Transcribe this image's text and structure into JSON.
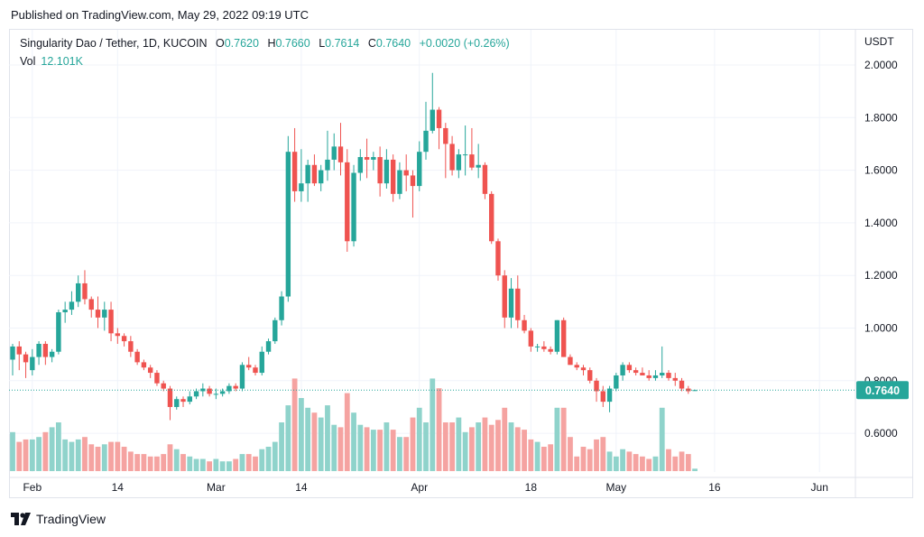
{
  "header": {
    "published": "Published on TradingView.com, May 29, 2022 09:19 UTC"
  },
  "legend": {
    "symbol": "Singularity Dao / Tether, 1D, KUCOIN",
    "open_label": "O",
    "open": "0.7620",
    "high_label": "H",
    "high": "0.7660",
    "low_label": "L",
    "low": "0.7614",
    "close_label": "C",
    "close": "0.7640",
    "change": "+0.0020 (+0.26%)",
    "vol_label": "Vol",
    "vol": "12.101K"
  },
  "footer": {
    "brand": "TradingView"
  },
  "colors": {
    "up": "#26a69a",
    "down": "#ef5350",
    "up_vol": "#8fd3cb",
    "down_vol": "#f5a3a1",
    "grid": "#f0f3fa"
  },
  "chart_data": {
    "type": "candlestick",
    "ylabel": "USDT",
    "ylim": [
      0.44,
      2.1
    ],
    "y_ticks": [
      "2.0000",
      "1.8000",
      "1.6000",
      "1.4000",
      "1.2000",
      "1.0000",
      "0.8000",
      "0.6000"
    ],
    "x_ticks": [
      {
        "label": "Feb",
        "date": "2022-02-01"
      },
      {
        "label": "14",
        "date": "2022-02-14"
      },
      {
        "label": "Mar",
        "date": "2022-03-01"
      },
      {
        "label": "14",
        "date": "2022-03-14"
      },
      {
        "label": "Apr",
        "date": "2022-04-01"
      },
      {
        "label": "18",
        "date": "2022-04-18"
      },
      {
        "label": "May",
        "date": "2022-05-01"
      },
      {
        "label": "16",
        "date": "2022-05-16"
      },
      {
        "label": "Jun",
        "date": "2022-06-01"
      }
    ],
    "last_price": "0.7640",
    "start_date": "2022-01-29",
    "columns": [
      "open",
      "high",
      "low",
      "close",
      "volume"
    ],
    "candles": [
      [
        0.88,
        0.94,
        0.82,
        0.93,
        0.16
      ],
      [
        0.93,
        0.95,
        0.84,
        0.9,
        0.12
      ],
      [
        0.9,
        0.91,
        0.81,
        0.87,
        0.13
      ],
      [
        0.84,
        0.92,
        0.82,
        0.89,
        0.13
      ],
      [
        0.89,
        0.95,
        0.86,
        0.94,
        0.14
      ],
      [
        0.94,
        0.95,
        0.86,
        0.89,
        0.16
      ],
      [
        0.89,
        0.92,
        0.87,
        0.91,
        0.18
      ],
      [
        0.91,
        1.07,
        0.9,
        1.06,
        0.2
      ],
      [
        1.06,
        1.1,
        1.02,
        1.07,
        0.13
      ],
      [
        1.07,
        1.14,
        1.05,
        1.1,
        0.12
      ],
      [
        1.1,
        1.2,
        1.08,
        1.17,
        0.13
      ],
      [
        1.17,
        1.22,
        1.09,
        1.11,
        0.14
      ],
      [
        1.11,
        1.12,
        1.04,
        1.07,
        0.11
      ],
      [
        1.07,
        1.12,
        1.0,
        1.04,
        0.1
      ],
      [
        1.04,
        1.1,
        0.99,
        1.07,
        0.11
      ],
      [
        1.07,
        1.1,
        0.95,
        0.98,
        0.12
      ],
      [
        0.98,
        1.0,
        0.94,
        0.97,
        0.12
      ],
      [
        0.97,
        0.98,
        0.93,
        0.95,
        0.1
      ],
      [
        0.95,
        0.97,
        0.89,
        0.91,
        0.08
      ],
      [
        0.91,
        0.92,
        0.86,
        0.87,
        0.07
      ],
      [
        0.87,
        0.88,
        0.84,
        0.85,
        0.07
      ],
      [
        0.85,
        0.86,
        0.81,
        0.83,
        0.06
      ],
      [
        0.83,
        0.84,
        0.78,
        0.79,
        0.06
      ],
      [
        0.79,
        0.8,
        0.76,
        0.77,
        0.07
      ],
      [
        0.77,
        0.78,
        0.65,
        0.7,
        0.11
      ],
      [
        0.7,
        0.74,
        0.69,
        0.73,
        0.09
      ],
      [
        0.73,
        0.74,
        0.7,
        0.72,
        0.07
      ],
      [
        0.72,
        0.76,
        0.71,
        0.74,
        0.06
      ],
      [
        0.74,
        0.77,
        0.73,
        0.76,
        0.05
      ],
      [
        0.76,
        0.79,
        0.74,
        0.77,
        0.05
      ],
      [
        0.77,
        0.78,
        0.74,
        0.75,
        0.04
      ],
      [
        0.75,
        0.77,
        0.73,
        0.75,
        0.05
      ],
      [
        0.75,
        0.77,
        0.74,
        0.76,
        0.04
      ],
      [
        0.76,
        0.79,
        0.75,
        0.78,
        0.04
      ],
      [
        0.78,
        0.79,
        0.76,
        0.77,
        0.05
      ],
      [
        0.77,
        0.87,
        0.76,
        0.86,
        0.07
      ],
      [
        0.86,
        0.89,
        0.84,
        0.85,
        0.07
      ],
      [
        0.85,
        0.86,
        0.82,
        0.83,
        0.06
      ],
      [
        0.83,
        0.93,
        0.82,
        0.91,
        0.09
      ],
      [
        0.91,
        0.96,
        0.9,
        0.95,
        0.1
      ],
      [
        0.95,
        1.04,
        0.94,
        1.03,
        0.12
      ],
      [
        1.03,
        1.14,
        1.01,
        1.12,
        0.2
      ],
      [
        1.12,
        1.73,
        1.1,
        1.67,
        0.27
      ],
      [
        1.67,
        1.76,
        1.48,
        1.52,
        0.38
      ],
      [
        1.52,
        1.68,
        1.48,
        1.55,
        0.3
      ],
      [
        1.55,
        1.64,
        1.48,
        1.62,
        0.26
      ],
      [
        1.62,
        1.66,
        1.54,
        1.55,
        0.24
      ],
      [
        1.55,
        1.62,
        1.52,
        1.6,
        0.22
      ],
      [
        1.6,
        1.75,
        1.56,
        1.64,
        0.27
      ],
      [
        1.64,
        1.74,
        1.6,
        1.69,
        0.19
      ],
      [
        1.69,
        1.78,
        1.58,
        1.63,
        0.18
      ],
      [
        1.63,
        1.68,
        1.29,
        1.33,
        0.32
      ],
      [
        1.33,
        1.62,
        1.31,
        1.59,
        0.24
      ],
      [
        1.59,
        1.68,
        1.56,
        1.65,
        0.19
      ],
      [
        1.65,
        1.72,
        1.57,
        1.64,
        0.18
      ],
      [
        1.64,
        1.67,
        1.6,
        1.65,
        0.17
      ],
      [
        1.65,
        1.69,
        1.5,
        1.55,
        0.17
      ],
      [
        1.55,
        1.68,
        1.53,
        1.64,
        0.2
      ],
      [
        1.64,
        1.66,
        1.48,
        1.51,
        0.17
      ],
      [
        1.51,
        1.63,
        1.49,
        1.6,
        0.14
      ],
      [
        1.6,
        1.66,
        1.52,
        1.58,
        0.14
      ],
      [
        1.58,
        1.6,
        1.42,
        1.54,
        0.22
      ],
      [
        1.54,
        1.71,
        1.52,
        1.67,
        0.26
      ],
      [
        1.67,
        1.86,
        1.64,
        1.75,
        0.2
      ],
      [
        1.75,
        1.97,
        1.74,
        1.83,
        0.38
      ],
      [
        1.83,
        1.84,
        1.68,
        1.76,
        0.34
      ],
      [
        1.76,
        1.78,
        1.57,
        1.7,
        0.2
      ],
      [
        1.7,
        1.73,
        1.58,
        1.6,
        0.2
      ],
      [
        1.6,
        1.68,
        1.57,
        1.66,
        0.22
      ],
      [
        1.66,
        1.77,
        1.58,
        1.66,
        0.16
      ],
      [
        1.66,
        1.76,
        1.6,
        1.61,
        0.18
      ],
      [
        1.61,
        1.7,
        1.57,
        1.62,
        0.2
      ],
      [
        1.62,
        1.63,
        1.49,
        1.51,
        0.22
      ],
      [
        1.51,
        1.52,
        1.32,
        1.33,
        0.19
      ],
      [
        1.33,
        1.34,
        1.18,
        1.2,
        0.21
      ],
      [
        1.2,
        1.22,
        1.0,
        1.04,
        0.26
      ],
      [
        1.04,
        1.19,
        1.0,
        1.15,
        0.2
      ],
      [
        1.15,
        1.2,
        1.0,
        1.03,
        0.18
      ],
      [
        1.03,
        1.05,
        0.98,
        0.99,
        0.17
      ],
      [
        0.99,
        1.0,
        0.91,
        0.93,
        0.13
      ],
      [
        0.93,
        0.94,
        0.91,
        0.93,
        0.12
      ],
      [
        0.93,
        0.95,
        0.91,
        0.92,
        0.1
      ],
      [
        0.92,
        0.93,
        0.9,
        0.91,
        0.11
      ],
      [
        0.91,
        1.03,
        0.9,
        1.03,
        0.26
      ],
      [
        1.03,
        1.04,
        0.89,
        0.89,
        0.26
      ],
      [
        0.89,
        0.9,
        0.86,
        0.86,
        0.14
      ],
      [
        0.86,
        0.87,
        0.84,
        0.85,
        0.06
      ],
      [
        0.85,
        0.86,
        0.82,
        0.84,
        0.1
      ],
      [
        0.84,
        0.85,
        0.79,
        0.8,
        0.09
      ],
      [
        0.8,
        0.81,
        0.72,
        0.76,
        0.13
      ],
      [
        0.76,
        0.78,
        0.7,
        0.72,
        0.14
      ],
      [
        0.72,
        0.78,
        0.68,
        0.77,
        0.08
      ],
      [
        0.77,
        0.83,
        0.76,
        0.82,
        0.06
      ],
      [
        0.82,
        0.87,
        0.8,
        0.86,
        0.09
      ],
      [
        0.86,
        0.87,
        0.83,
        0.84,
        0.08
      ],
      [
        0.84,
        0.85,
        0.82,
        0.83,
        0.07
      ],
      [
        0.83,
        0.85,
        0.82,
        0.82,
        0.06
      ],
      [
        0.82,
        0.84,
        0.8,
        0.81,
        0.05
      ],
      [
        0.81,
        0.84,
        0.8,
        0.82,
        0.06
      ],
      [
        0.82,
        0.93,
        0.81,
        0.83,
        0.26
      ],
      [
        0.83,
        0.84,
        0.8,
        0.81,
        0.09
      ],
      [
        0.81,
        0.83,
        0.78,
        0.8,
        0.06
      ],
      [
        0.8,
        0.81,
        0.76,
        0.77,
        0.08
      ],
      [
        0.77,
        0.78,
        0.75,
        0.76,
        0.07
      ],
      [
        0.762,
        0.766,
        0.7614,
        0.764,
        0.01
      ]
    ]
  }
}
